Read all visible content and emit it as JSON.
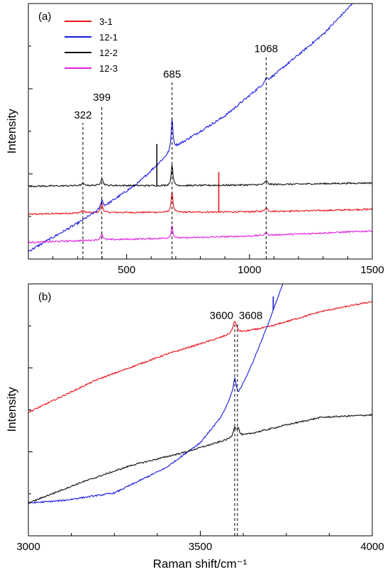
{
  "chart_data": [
    {
      "type": "line",
      "panel_label": "(a)",
      "xlabel": "",
      "ylabel": "Intensity",
      "xlim": [
        100,
        1500
      ],
      "ylim": [
        0,
        100
      ],
      "xticks": [
        500,
        1000,
        1500
      ],
      "y_tick_labels_shown": false,
      "grid": false,
      "legend": {
        "placement": "top-left",
        "entries": [
          {
            "label": "3-1",
            "color": "#e8141c"
          },
          {
            "label": "12-1",
            "color": "#1b1be0"
          },
          {
            "label": "12-2",
            "color": "#111111"
          },
          {
            "label": "12-3",
            "color": "#e020e0"
          }
        ]
      },
      "peaks": [
        {
          "x": 322,
          "label": "322",
          "label_y": 55
        },
        {
          "x": 399,
          "label": "399",
          "label_y": 62
        },
        {
          "x": 685,
          "label": "685",
          "label_y": 71
        },
        {
          "x": 1068,
          "label": "1068",
          "label_y": 81
        }
      ],
      "series": [
        {
          "name": "3-1",
          "color": "#e8141c",
          "noise": 0.3,
          "baseline": [
            [
              100,
              17.5
            ],
            [
              400,
              18.2
            ],
            [
              700,
              18.3
            ],
            [
              1000,
              18.5
            ],
            [
              1300,
              19.0
            ],
            [
              1500,
              19.5
            ]
          ],
          "peaks": [
            [
              322,
              0.8,
              10
            ],
            [
              399,
              3.5,
              5
            ],
            [
              685,
              8.5,
              4
            ],
            [
              1068,
              1.5,
              6
            ]
          ],
          "spikes": [
            [
              875,
              34
            ]
          ]
        },
        {
          "name": "12-1",
          "color": "#1b1be0",
          "noise": 0.45,
          "baseline": [
            [
              100,
              3
            ],
            [
              300,
              14
            ],
            [
              400,
              20
            ],
            [
              550,
              30
            ],
            [
              700,
              44
            ],
            [
              900,
              56
            ],
            [
              1100,
              72
            ],
            [
              1300,
              88
            ],
            [
              1420,
              100
            ]
          ],
          "peaks": [
            [
              399,
              3.5,
              5
            ],
            [
              685,
              13,
              4
            ],
            [
              1068,
              1.5,
              6
            ]
          ],
          "spikes": []
        },
        {
          "name": "12-2",
          "color": "#111111",
          "noise": 0.3,
          "baseline": [
            [
              100,
              28.5
            ],
            [
              400,
              28.8
            ],
            [
              700,
              28.7
            ],
            [
              1000,
              29.0
            ],
            [
              1300,
              29.5
            ],
            [
              1500,
              29.8
            ]
          ],
          "peaks": [
            [
              322,
              0.6,
              10
            ],
            [
              399,
              3.0,
              5
            ],
            [
              685,
              8.5,
              4
            ],
            [
              1068,
              1.5,
              6
            ]
          ],
          "spikes": [
            [
              623,
              45
            ]
          ]
        },
        {
          "name": "12-3",
          "color": "#e020e0",
          "noise": 0.3,
          "baseline": [
            [
              100,
              6.5
            ],
            [
              400,
              7.5
            ],
            [
              700,
              8.2
            ],
            [
              1000,
              9.0
            ],
            [
              1300,
              10.2
            ],
            [
              1500,
              11.0
            ]
          ],
          "peaks": [
            [
              399,
              2.5,
              5
            ],
            [
              685,
              5.0,
              4
            ],
            [
              1068,
              1.0,
              6
            ]
          ],
          "spikes": []
        }
      ]
    },
    {
      "type": "line",
      "panel_label": "(b)",
      "xlabel": "Raman shift/cm⁻¹",
      "ylabel": "Intensity",
      "xlim": [
        3000,
        4000
      ],
      "ylim": [
        0,
        100
      ],
      "xticks": [
        3000,
        3500,
        4000
      ],
      "y_tick_labels_shown": false,
      "grid": false,
      "peaks": [
        {
          "x": 3600,
          "label": "3600",
          "label_y": 86
        },
        {
          "x": 3608,
          "label": "3608",
          "label_y": 86
        }
      ],
      "series": [
        {
          "name": "3-1",
          "color": "#e8141c",
          "noise": 0.3,
          "baseline": [
            [
              3000,
              49
            ],
            [
              3200,
              62
            ],
            [
              3400,
              72
            ],
            [
              3590,
              80
            ],
            [
              3700,
              83
            ],
            [
              3850,
              89
            ],
            [
              4000,
              93
            ]
          ],
          "peaks": [
            [
              3600,
              5,
              6
            ]
          ],
          "spikes": []
        },
        {
          "name": "12-1",
          "color": "#1b1be0",
          "noise": 0.3,
          "baseline": [
            [
              3000,
              13
            ],
            [
              3100,
              14
            ],
            [
              3250,
              17
            ],
            [
              3400,
              27
            ],
            [
              3500,
              37
            ],
            [
              3560,
              47
            ],
            [
              3590,
              55
            ],
            [
              3610,
              56
            ],
            [
              3650,
              68
            ],
            [
              3700,
              85
            ],
            [
              3740,
              100
            ]
          ],
          "peaks": [
            [
              3600,
              7,
              5
            ]
          ],
          "spikes": [
            [
              3712,
              95
            ]
          ]
        },
        {
          "name": "12-2",
          "color": "#111111",
          "noise": 0.3,
          "baseline": [
            [
              3000,
              13
            ],
            [
              3150,
              21
            ],
            [
              3300,
              28
            ],
            [
              3450,
              33
            ],
            [
              3600,
              39
            ],
            [
              3750,
              44
            ],
            [
              3850,
              47
            ],
            [
              4000,
              48
            ]
          ],
          "peaks": [
            [
              3600,
              4,
              5
            ],
            [
              3610,
              3,
              4
            ]
          ],
          "spikes": []
        }
      ]
    }
  ]
}
